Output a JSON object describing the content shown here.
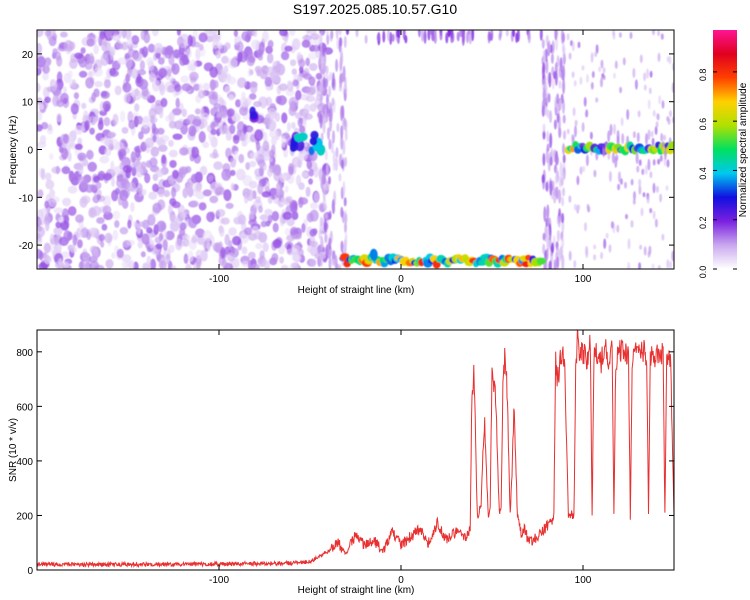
{
  "figure": {
    "title": "S197.2025.085.10.57.G10"
  },
  "chart_data": [
    {
      "type": "heatmap",
      "xlabel": "Height of straight line (km)",
      "ylabel": "Frequency (Hz)",
      "xlim": [
        -200,
        150
      ],
      "ylim": [
        -25,
        25
      ],
      "xticks": [
        -100,
        0,
        100
      ],
      "yticks": [
        -20,
        -10,
        0,
        10,
        20
      ],
      "grid": false,
      "colorbar": {
        "label": "Normalized spectral amplitude",
        "ticks": [
          0.0,
          0.2,
          0.4,
          0.6,
          0.8
        ],
        "range": [
          0.0,
          0.97
        ],
        "colors": [
          "#ffffff",
          "#c9a8ee",
          "#7a20e0",
          "#1010e0",
          "#00c8f0",
          "#00e060",
          "#b0e000",
          "#ffd000",
          "#ff4000",
          "#e00020",
          "#ff1493"
        ]
      },
      "regions": [
        {
          "name": "scattered noise",
          "x": [
            -200,
            -40
          ],
          "f": [
            -25,
            25
          ],
          "level": 0.15
        },
        {
          "name": "cluster",
          "x": [
            -60,
            -40
          ],
          "f": [
            -1,
            3
          ],
          "level": 0.35
        },
        {
          "name": "spot",
          "x": [
            -82,
            -80
          ],
          "f": [
            6,
            8
          ],
          "level": 0.3
        },
        {
          "name": "band at -24 Hz",
          "x": [
            -32,
            78
          ],
          "f": [
            -25,
            -22
          ],
          "level": 0.75
        },
        {
          "name": "band at 0 Hz",
          "x": [
            92,
            150
          ],
          "f": [
            -1,
            1.5
          ],
          "level": 0.65
        }
      ]
    },
    {
      "type": "line",
      "xlabel": "Height of straight line (km)",
      "ylabel": "SNR (10 * v/v)",
      "xlim": [
        -200,
        150
      ],
      "ylim": [
        0,
        880
      ],
      "xticks": [
        -100,
        0,
        100
      ],
      "yticks": [
        0,
        200,
        400,
        600,
        800
      ],
      "grid": false,
      "series": [
        {
          "color": "#e83030",
          "x": [
            -200,
            -150,
            -100,
            -60,
            -50,
            -40,
            -35,
            -30,
            -25,
            -20,
            -15,
            -10,
            -5,
            0,
            5,
            10,
            15,
            20,
            25,
            30,
            35,
            38,
            39,
            40,
            42,
            44,
            45,
            46,
            48,
            49,
            50,
            52,
            54,
            55,
            56,
            57,
            58,
            60,
            61,
            62,
            64,
            66,
            68,
            70,
            75,
            80,
            83,
            84,
            85,
            86,
            88,
            90,
            92,
            95,
            96,
            97,
            98,
            100,
            102,
            104,
            105,
            106,
            108,
            110,
            112,
            114,
            116,
            117,
            118,
            120,
            122,
            125,
            126,
            127,
            128,
            130,
            132,
            135,
            136,
            137,
            138,
            140,
            142,
            144,
            145,
            146,
            148,
            150
          ],
          "y": [
            20,
            20,
            22,
            25,
            30,
            70,
            100,
            60,
            130,
            90,
            110,
            70,
            140,
            95,
            120,
            150,
            100,
            170,
            110,
            140,
            120,
            150,
            650,
            720,
            200,
            230,
            420,
            520,
            200,
            240,
            740,
            620,
            200,
            250,
            650,
            770,
            730,
            200,
            350,
            600,
            200,
            130,
            150,
            100,
            120,
            160,
            180,
            200,
            760,
            690,
            800,
            750,
            200,
            200,
            720,
            860,
            790,
            800,
            760,
            830,
            200,
            790,
            800,
            760,
            830,
            780,
            800,
            200,
            770,
            800,
            820,
            780,
            200,
            770,
            800,
            790,
            810,
            790,
            200,
            760,
            800,
            780,
            790,
            800,
            200,
            780,
            790,
            200
          ]
        }
      ]
    }
  ]
}
